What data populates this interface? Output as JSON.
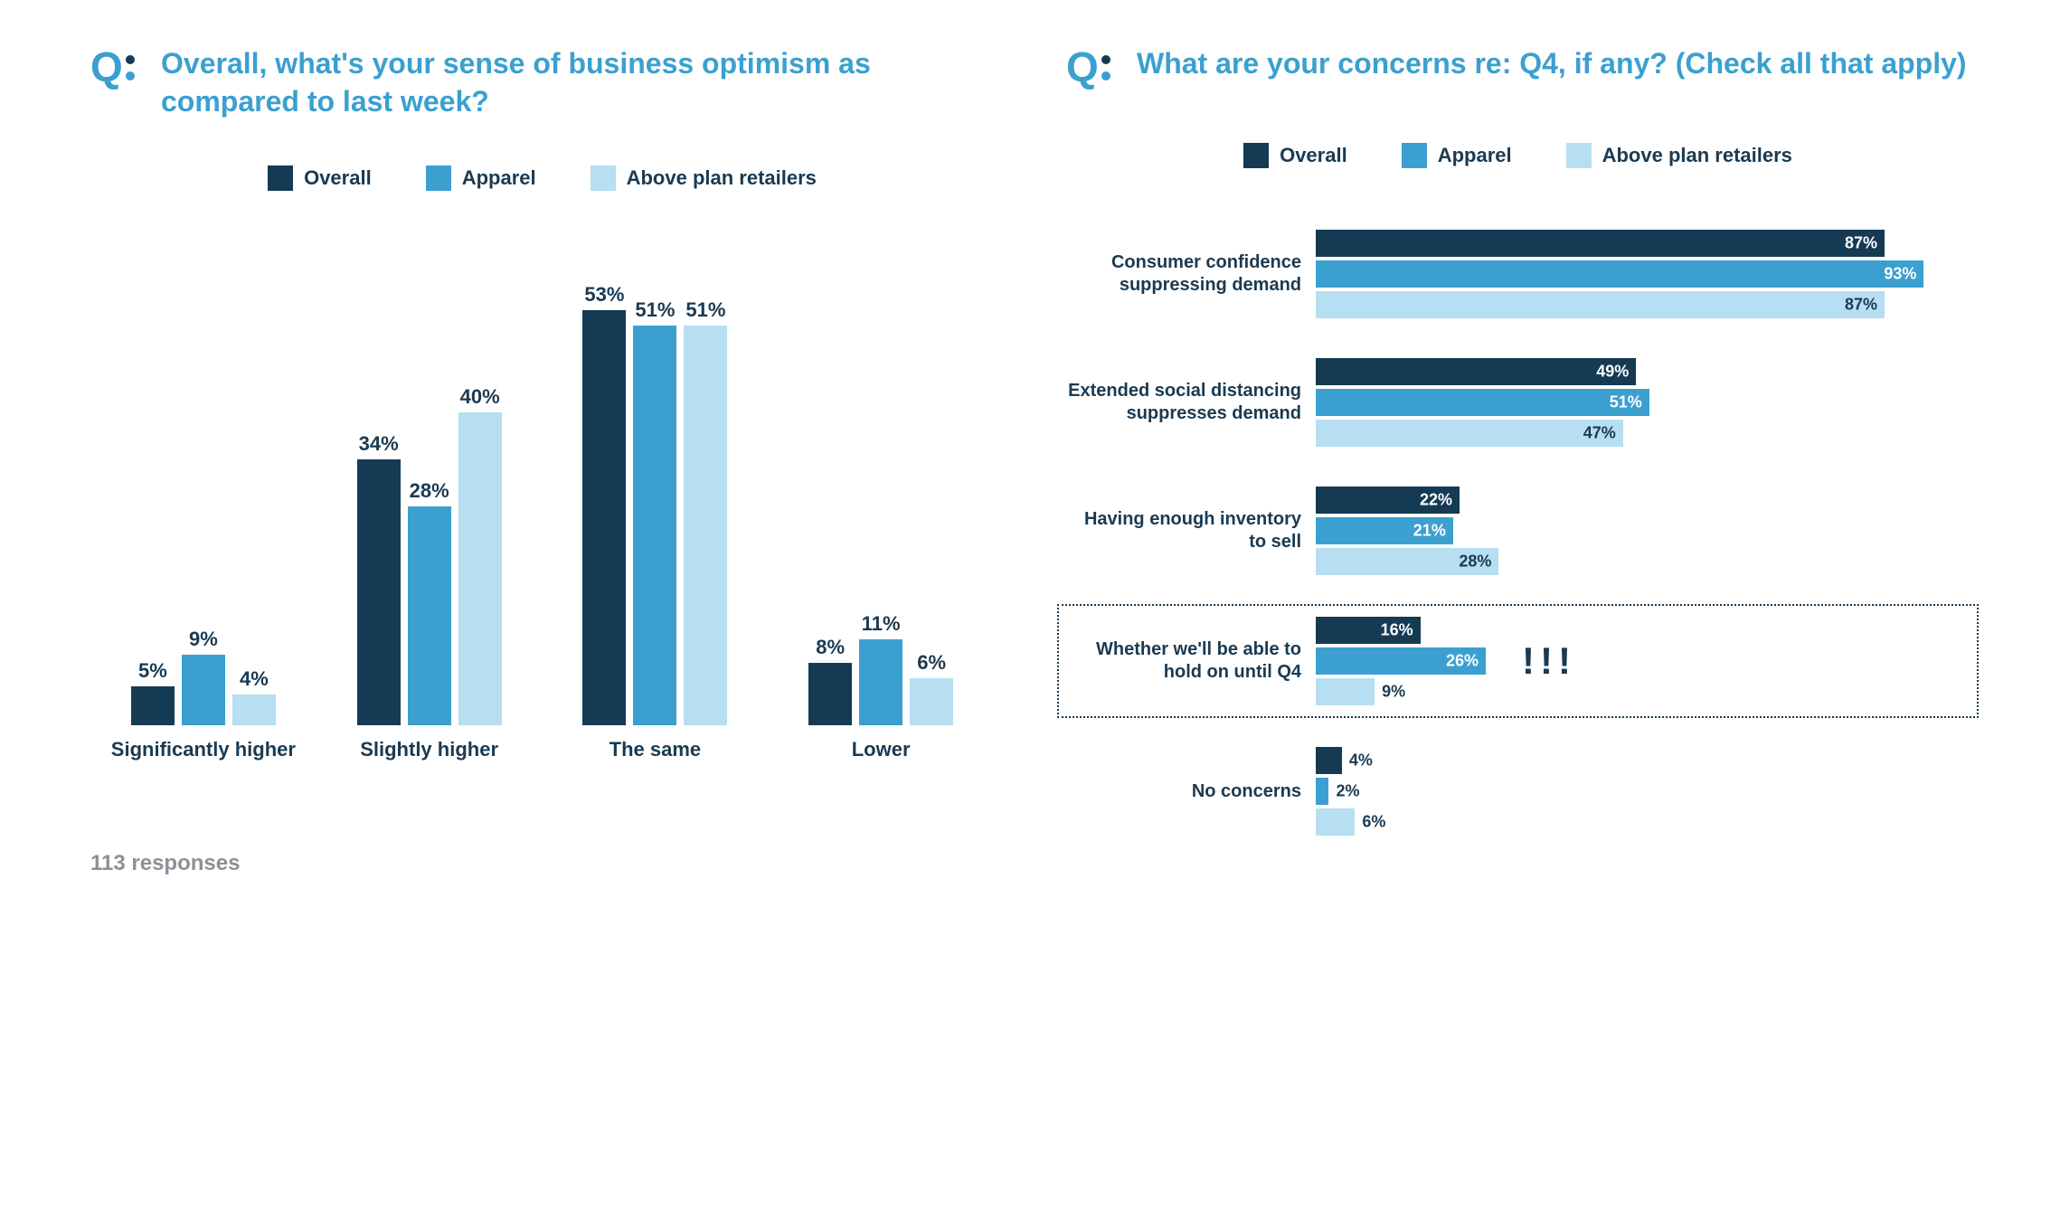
{
  "colors": {
    "overall": "#153a54",
    "apparel": "#3ba0d0",
    "above": "#b6dff1",
    "title": "#3ba0d0",
    "text": "#1a3a52",
    "muted": "#8a9199",
    "white": "#ffffff"
  },
  "legend": {
    "overall": "Overall",
    "apparel": "Apparel",
    "above": "Above plan retailers"
  },
  "left": {
    "title": "Overall, what's your sense of business optimism as compared to last week?",
    "max": 60,
    "categories": [
      {
        "label": "Significantly higher",
        "overall": 5,
        "apparel": 9,
        "above": 4
      },
      {
        "label": "Slightly higher",
        "overall": 34,
        "apparel": 28,
        "above": 40
      },
      {
        "label": "The same",
        "overall": 53,
        "apparel": 51,
        "above": 51
      },
      {
        "label": "Lower",
        "overall": 8,
        "apparel": 11,
        "above": 6
      }
    ],
    "responses": "113 responses"
  },
  "right": {
    "title": "What are your concerns re: Q4, if any? (Check all that apply)",
    "max": 100,
    "categories": [
      {
        "label": "Consumer confidence suppressing demand",
        "overall": 87,
        "apparel": 93,
        "above": 87,
        "highlight": false
      },
      {
        "label": "Extended social distancing suppresses demand",
        "overall": 49,
        "apparel": 51,
        "above": 47,
        "highlight": false
      },
      {
        "label": "Having enough inventory to sell",
        "overall": 22,
        "apparel": 21,
        "above": 28,
        "highlight": false
      },
      {
        "label": "Whether we'll be able to hold on until Q4",
        "overall": 16,
        "apparel": 26,
        "above": 9,
        "highlight": true,
        "excl": "!!!"
      },
      {
        "label": "No concerns",
        "overall": 4,
        "apparel": 2,
        "above": 6,
        "highlight": false
      }
    ]
  }
}
